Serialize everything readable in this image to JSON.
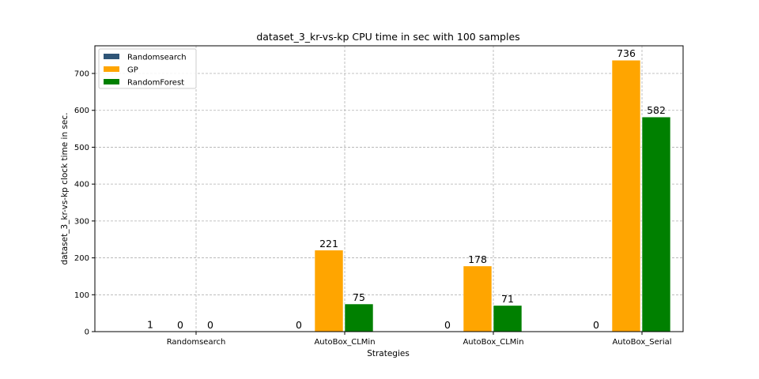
{
  "chart_data": {
    "type": "bar",
    "title": "dataset_3_kr-vs-kp CPU time in sec with 100 samples",
    "xlabel": "Strategies",
    "ylabel": "dataset_3_kr-vs-kp clock time in sec.",
    "categories": [
      "Randomsearch",
      "AutoBox_CLMin",
      "AutoBox_CLMin",
      "AutoBox_Serial"
    ],
    "ylim": [
      0,
      775
    ],
    "yticks": [
      0,
      100,
      200,
      300,
      400,
      500,
      600,
      700
    ],
    "grid": true,
    "legend_position": "top-left",
    "series": [
      {
        "name": "Randomsearch",
        "color": "#2f5577",
        "values": [
          1,
          0,
          0,
          0
        ],
        "labels": [
          "1",
          "0",
          "0",
          "0"
        ]
      },
      {
        "name": "GP",
        "color": "#ffa500",
        "values": [
          0,
          221,
          178,
          736
        ],
        "labels": [
          "0",
          "221",
          "178",
          "736"
        ]
      },
      {
        "name": "RandomForest",
        "color": "#008000",
        "values": [
          0,
          75,
          71,
          582
        ],
        "labels": [
          "0",
          "75",
          "71",
          "582"
        ]
      }
    ]
  }
}
